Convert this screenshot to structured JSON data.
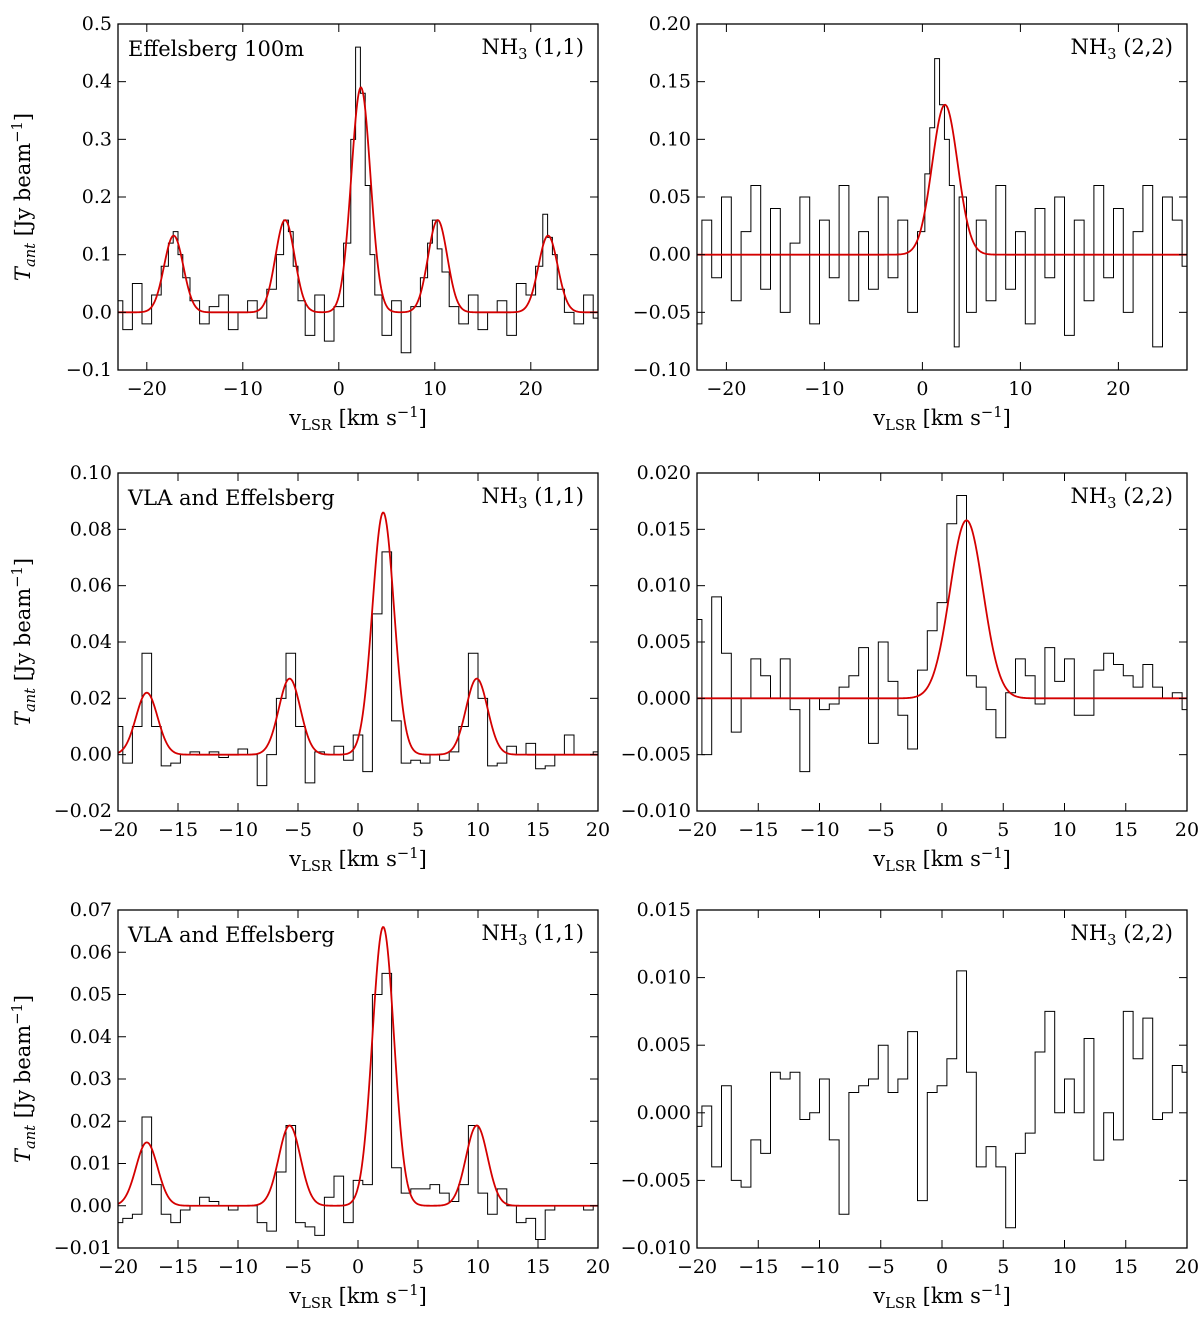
{
  "chart_data": [
    {
      "type": "line",
      "panel": "top-left",
      "title_left": "Effelsberg 100m",
      "title_right": "NH3 (1,1)",
      "xlabel": "vLSR [km s−1]",
      "ylabel": "Tant [Jy beam−1]",
      "xlim": [
        -23,
        27
      ],
      "ylim": [
        -0.1,
        0.5
      ],
      "xticks": [
        -20,
        -10,
        0,
        10,
        20
      ],
      "yticks": [
        -0.1,
        0.0,
        0.1,
        0.2,
        0.3,
        0.4,
        0.5
      ],
      "ytick_labels": [
        "−0.1",
        "0.0",
        "0.1",
        "0.2",
        "0.3",
        "0.4",
        "0.5"
      ],
      "xtick_labels": [
        "−20",
        "−10",
        "0",
        "10",
        "20"
      ],
      "series": [
        {
          "kind": "step",
          "color": "#000000",
          "x": [
            -23.0,
            -22.0,
            -21.0,
            -20.0,
            -19.0,
            -18.0,
            -17.5,
            -17.0,
            -16.5,
            -16.0,
            -15.0,
            -14.0,
            -13.0,
            -12.0,
            -11.0,
            -10.0,
            -9.0,
            -8.0,
            -7.0,
            -6.0,
            -5.5,
            -5.0,
            -4.5,
            -4.0,
            -3.0,
            -2.0,
            -1.0,
            0.0,
            1.0,
            1.5,
            2.0,
            2.5,
            3.0,
            3.5,
            4.0,
            5.0,
            6.0,
            7.0,
            8.0,
            9.0,
            9.5,
            10.0,
            10.5,
            11.0,
            12.0,
            13.0,
            14.0,
            15.0,
            16.0,
            17.0,
            18.0,
            19.0,
            20.0,
            21.0,
            21.5,
            22.0,
            22.5,
            23.0,
            24.0,
            25.0,
            26.0,
            27.0
          ],
          "y": [
            0.02,
            -0.03,
            0.05,
            -0.02,
            0.03,
            0.08,
            0.12,
            0.14,
            0.1,
            0.06,
            0.02,
            -0.02,
            0.01,
            0.03,
            -0.03,
            0.0,
            0.02,
            -0.01,
            0.04,
            0.1,
            0.16,
            0.14,
            0.08,
            0.02,
            -0.04,
            0.03,
            -0.05,
            0.01,
            0.12,
            0.3,
            0.46,
            0.38,
            0.22,
            0.1,
            0.03,
            -0.04,
            0.02,
            -0.07,
            0.01,
            0.06,
            0.12,
            0.16,
            0.11,
            0.07,
            0.01,
            -0.02,
            0.03,
            -0.03,
            0.0,
            0.02,
            -0.04,
            0.05,
            0.03,
            0.08,
            0.17,
            0.13,
            0.1,
            0.04,
            0.0,
            -0.02,
            0.03,
            -0.01
          ]
        },
        {
          "kind": "fit",
          "color": "#d40000",
          "components": [
            [
              -17.2,
              0.133,
              1.0
            ],
            [
              -5.6,
              0.16,
              1.0
            ],
            [
              2.3,
              0.39,
              1.0
            ],
            [
              10.3,
              0.16,
              1.0
            ],
            [
              21.8,
              0.133,
              1.0
            ]
          ]
        }
      ]
    },
    {
      "type": "line",
      "panel": "top-right",
      "title_left": "",
      "title_right": "NH3 (2,2)",
      "xlabel": "vLSR [km s−1]",
      "ylabel": "",
      "xlim": [
        -23,
        27
      ],
      "ylim": [
        -0.1,
        0.2
      ],
      "xticks": [
        -20,
        -10,
        0,
        10,
        20
      ],
      "yticks": [
        -0.1,
        -0.05,
        0.0,
        0.05,
        0.1,
        0.15,
        0.2
      ],
      "ytick_labels": [
        "−0.10",
        "−0.05",
        "0.00",
        "0.05",
        "0.10",
        "0.15",
        "0.20"
      ],
      "xtick_labels": [
        "−20",
        "−10",
        "0",
        "10",
        "20"
      ],
      "series": [
        {
          "kind": "step",
          "color": "#000000",
          "x": [
            -23.0,
            -22.0,
            -21.0,
            -20.0,
            -19.0,
            -18.0,
            -17.0,
            -16.0,
            -15.0,
            -14.0,
            -13.0,
            -12.0,
            -11.0,
            -10.0,
            -9.0,
            -8.0,
            -7.0,
            -6.0,
            -5.0,
            -4.0,
            -3.0,
            -2.0,
            -1.0,
            0.0,
            0.5,
            1.0,
            1.5,
            2.0,
            2.5,
            3.0,
            3.5,
            4.0,
            5.0,
            6.0,
            7.0,
            8.0,
            9.0,
            10.0,
            11.0,
            12.0,
            13.0,
            14.0,
            15.0,
            16.0,
            17.0,
            18.0,
            19.0,
            20.0,
            21.0,
            22.0,
            23.0,
            24.0,
            25.0,
            26.0,
            27.0
          ],
          "y": [
            -0.06,
            0.03,
            -0.02,
            0.05,
            -0.04,
            0.02,
            0.06,
            -0.03,
            0.04,
            -0.05,
            0.01,
            0.05,
            -0.06,
            0.03,
            -0.02,
            0.06,
            -0.04,
            0.02,
            -0.03,
            0.05,
            -0.02,
            0.03,
            -0.05,
            0.02,
            0.07,
            0.11,
            0.17,
            0.13,
            0.1,
            0.06,
            -0.08,
            0.05,
            -0.05,
            0.03,
            -0.04,
            0.06,
            -0.03,
            0.02,
            -0.06,
            0.04,
            -0.02,
            0.05,
            -0.07,
            0.03,
            -0.04,
            0.06,
            -0.02,
            0.04,
            -0.05,
            0.02,
            0.06,
            -0.08,
            0.05,
            0.03,
            -0.01
          ]
        },
        {
          "kind": "fit",
          "color": "#d40000",
          "components": [
            [
              2.3,
              0.13,
              1.3
            ]
          ]
        }
      ]
    },
    {
      "type": "line",
      "panel": "middle-left",
      "title_left": "VLA and Effelsberg",
      "title_right": "NH3 (1,1)",
      "xlabel": "vLSR [km s−1]",
      "ylabel": "Tant [Jy beam−1]",
      "xlim": [
        -20,
        20
      ],
      "ylim": [
        -0.02,
        0.1
      ],
      "xticks": [
        -20,
        -15,
        -10,
        -5,
        0,
        5,
        10,
        15,
        20
      ],
      "yticks": [
        -0.02,
        0.0,
        0.02,
        0.04,
        0.06,
        0.08,
        0.1
      ],
      "ytick_labels": [
        "−0.02",
        "0.00",
        "0.02",
        "0.04",
        "0.06",
        "0.08",
        "0.10"
      ],
      "xtick_labels": [
        "−20",
        "−15",
        "−10",
        "−5",
        "0",
        "5",
        "10",
        "15",
        "20"
      ],
      "series": [
        {
          "kind": "step",
          "color": "#000000",
          "x": [
            -20.0,
            -19.2,
            -18.4,
            -17.6,
            -16.8,
            -16.0,
            -15.2,
            -14.4,
            -13.6,
            -12.8,
            -12.0,
            -11.2,
            -10.4,
            -9.6,
            -8.8,
            -8.0,
            -7.2,
            -6.4,
            -5.6,
            -4.8,
            -4.0,
            -3.2,
            -2.4,
            -1.6,
            -0.8,
            0.0,
            0.8,
            1.6,
            2.4,
            3.2,
            4.0,
            4.8,
            5.6,
            6.4,
            7.2,
            8.0,
            8.8,
            9.6,
            10.4,
            11.2,
            12.0,
            12.8,
            13.6,
            14.4,
            15.2,
            16.0,
            16.8,
            17.6,
            18.4,
            19.2,
            20.0
          ],
          "y": [
            0.01,
            -0.003,
            0.01,
            0.036,
            0.01,
            -0.004,
            -0.003,
            0.0,
            0.001,
            0.0,
            0.001,
            -0.001,
            0.0,
            0.002,
            0.0,
            -0.011,
            0.0,
            0.02,
            0.036,
            0.01,
            -0.01,
            0.001,
            0.0,
            0.003,
            -0.002,
            0.007,
            -0.006,
            0.05,
            0.072,
            0.012,
            -0.003,
            -0.002,
            -0.003,
            0.0,
            -0.002,
            0.001,
            0.01,
            0.036,
            0.02,
            -0.004,
            -0.003,
            0.003,
            0.0,
            0.004,
            -0.005,
            -0.004,
            0.0,
            0.007,
            0.0,
            0.0,
            0.001
          ]
        },
        {
          "kind": "fit",
          "color": "#d40000",
          "components": [
            [
              -17.6,
              0.022,
              0.9
            ],
            [
              -5.7,
              0.027,
              0.9
            ],
            [
              2.1,
              0.086,
              0.9
            ],
            [
              9.9,
              0.027,
              0.9
            ]
          ]
        }
      ]
    },
    {
      "type": "line",
      "panel": "middle-right",
      "title_left": "",
      "title_right": "NH3 (2,2)",
      "xlabel": "vLSR [km s−1]",
      "ylabel": "",
      "xlim": [
        -20,
        20
      ],
      "ylim": [
        -0.01,
        0.02
      ],
      "xticks": [
        -20,
        -15,
        -10,
        -5,
        0,
        5,
        10,
        15,
        20
      ],
      "yticks": [
        -0.01,
        -0.005,
        0.0,
        0.005,
        0.01,
        0.015,
        0.02
      ],
      "ytick_labels": [
        "−0.010",
        "−0.005",
        "0.000",
        "0.005",
        "0.010",
        "0.015",
        "0.020"
      ],
      "xtick_labels": [
        "−20",
        "−15",
        "−10",
        "−5",
        "0",
        "5",
        "10",
        "15",
        "20"
      ],
      "series": [
        {
          "kind": "step",
          "color": "#000000",
          "x": [
            -20.0,
            -19.2,
            -18.4,
            -17.6,
            -16.8,
            -16.0,
            -15.2,
            -14.4,
            -13.6,
            -12.8,
            -12.0,
            -11.2,
            -10.4,
            -9.6,
            -8.8,
            -8.0,
            -7.2,
            -6.4,
            -5.6,
            -4.8,
            -4.0,
            -3.2,
            -2.4,
            -1.6,
            -0.8,
            0.0,
            0.8,
            1.6,
            2.4,
            3.2,
            4.0,
            4.8,
            5.6,
            6.4,
            7.2,
            8.0,
            8.8,
            9.6,
            10.4,
            11.2,
            12.0,
            12.8,
            13.6,
            14.4,
            15.2,
            16.0,
            16.8,
            17.6,
            18.4,
            19.2,
            20.0
          ],
          "y": [
            0.007,
            -0.005,
            0.009,
            0.004,
            -0.003,
            0.0,
            0.0035,
            0.002,
            0.0,
            0.0035,
            -0.001,
            -0.0065,
            0.0,
            -0.001,
            -0.0005,
            0.001,
            0.002,
            0.0045,
            -0.004,
            0.005,
            0.0015,
            -0.0015,
            -0.0045,
            0.0025,
            0.006,
            0.0085,
            0.0155,
            0.018,
            0.002,
            0.001,
            -0.001,
            -0.0035,
            0.0005,
            0.0035,
            0.002,
            -0.0005,
            0.0045,
            0.0015,
            0.0035,
            -0.0015,
            -0.0015,
            0.0025,
            0.004,
            0.003,
            0.002,
            0.001,
            0.003,
            0.001,
            0.0,
            0.0005,
            -0.001
          ]
        },
        {
          "kind": "fit",
          "color": "#d40000",
          "components": [
            [
              2.0,
              0.0158,
              1.35
            ]
          ]
        }
      ]
    },
    {
      "type": "line",
      "panel": "bottom-left",
      "title_left": "VLA and Effelsberg",
      "title_right": "NH3 (1,1)",
      "xlabel": "vLSR [km s−1]",
      "ylabel": "Tant [Jy beam−1]",
      "xlim": [
        -20,
        20
      ],
      "ylim": [
        -0.01,
        0.07
      ],
      "xticks": [
        -20,
        -15,
        -10,
        -5,
        0,
        5,
        10,
        15,
        20
      ],
      "yticks": [
        -0.01,
        0.0,
        0.01,
        0.02,
        0.03,
        0.04,
        0.05,
        0.06,
        0.07
      ],
      "ytick_labels": [
        "−0.01",
        "0.00",
        "0.01",
        "0.02",
        "0.03",
        "0.04",
        "0.05",
        "0.06",
        "0.07"
      ],
      "xtick_labels": [
        "−20",
        "−15",
        "−10",
        "−5",
        "0",
        "5",
        "10",
        "15",
        "20"
      ],
      "series": [
        {
          "kind": "step",
          "color": "#000000",
          "x": [
            -20.0,
            -19.2,
            -18.4,
            -17.6,
            -16.8,
            -16.0,
            -15.2,
            -14.4,
            -13.6,
            -12.8,
            -12.0,
            -11.2,
            -10.4,
            -9.6,
            -8.8,
            -8.0,
            -7.2,
            -6.4,
            -5.6,
            -4.8,
            -4.0,
            -3.2,
            -2.4,
            -1.6,
            -0.8,
            0.0,
            0.8,
            1.6,
            2.4,
            3.2,
            4.0,
            4.8,
            5.6,
            6.4,
            7.2,
            8.0,
            8.8,
            9.6,
            10.4,
            11.2,
            12.0,
            12.8,
            13.6,
            14.4,
            15.2,
            16.0,
            16.8,
            17.6,
            18.4,
            19.2,
            20.0
          ],
          "y": [
            -0.004,
            -0.003,
            -0.002,
            0.021,
            0.005,
            -0.002,
            -0.004,
            -0.001,
            0.0,
            0.002,
            0.001,
            0.0,
            -0.001,
            0.0,
            0.0,
            -0.004,
            -0.006,
            0.008,
            0.019,
            -0.004,
            -0.005,
            -0.007,
            0.002,
            0.007,
            -0.004,
            0.006,
            0.005,
            0.05,
            0.055,
            0.009,
            0.003,
            0.004,
            0.004,
            0.005,
            0.003,
            0.001,
            0.005,
            0.019,
            0.003,
            -0.002,
            0.004,
            0.0,
            -0.004,
            -0.003,
            -0.008,
            -0.001,
            0.0,
            0.0,
            0.0,
            -0.001,
            0.0
          ]
        },
        {
          "kind": "fit",
          "color": "#d40000",
          "components": [
            [
              -17.6,
              0.015,
              0.9
            ],
            [
              -5.7,
              0.019,
              0.9
            ],
            [
              2.1,
              0.066,
              0.9
            ],
            [
              9.9,
              0.019,
              0.9
            ]
          ]
        }
      ]
    },
    {
      "type": "line",
      "panel": "bottom-right",
      "title_left": "",
      "title_right": "NH3 (2,2)",
      "xlabel": "vLSR [km s−1]",
      "ylabel": "",
      "xlim": [
        -20,
        20
      ],
      "ylim": [
        -0.01,
        0.015
      ],
      "xticks": [
        -20,
        -15,
        -10,
        -5,
        0,
        5,
        10,
        15,
        20
      ],
      "yticks": [
        -0.01,
        -0.005,
        0.0,
        0.005,
        0.01,
        0.015
      ],
      "ytick_labels": [
        "−0.010",
        "−0.005",
        "0.000",
        "0.005",
        "0.010",
        "0.015"
      ],
      "xtick_labels": [
        "−20",
        "−15",
        "−10",
        "−5",
        "0",
        "5",
        "10",
        "15",
        "20"
      ],
      "series": [
        {
          "kind": "step",
          "color": "#000000",
          "x": [
            -20.0,
            -19.2,
            -18.4,
            -17.6,
            -16.8,
            -16.0,
            -15.2,
            -14.4,
            -13.6,
            -12.8,
            -12.0,
            -11.2,
            -10.4,
            -9.6,
            -8.8,
            -8.0,
            -7.2,
            -6.4,
            -5.6,
            -4.8,
            -4.0,
            -3.2,
            -2.4,
            -1.6,
            -0.8,
            0.0,
            0.8,
            1.6,
            2.4,
            3.2,
            4.0,
            4.8,
            5.6,
            6.4,
            7.2,
            8.0,
            8.8,
            9.6,
            10.4,
            11.2,
            12.0,
            12.8,
            13.6,
            14.4,
            15.2,
            16.0,
            16.8,
            17.6,
            18.4,
            19.2,
            20.0
          ],
          "y": [
            -0.001,
            0.0005,
            -0.004,
            0.002,
            -0.005,
            -0.0055,
            -0.002,
            -0.003,
            0.003,
            0.0025,
            0.003,
            -0.0005,
            0.0,
            0.0025,
            -0.002,
            -0.0075,
            0.0015,
            0.002,
            0.0025,
            0.005,
            0.0015,
            0.0025,
            0.006,
            -0.0065,
            0.0015,
            0.002,
            0.004,
            0.0105,
            0.003,
            -0.004,
            -0.0025,
            -0.004,
            -0.0085,
            -0.003,
            -0.0015,
            0.0045,
            0.0075,
            0.0,
            0.0025,
            0.0,
            0.0055,
            -0.0035,
            0.0,
            -0.002,
            0.0075,
            0.004,
            0.007,
            -0.0005,
            0.0,
            0.0035,
            0.003
          ]
        },
        {
          "kind": "fit",
          "color": "#d40000",
          "components": []
        }
      ]
    }
  ]
}
